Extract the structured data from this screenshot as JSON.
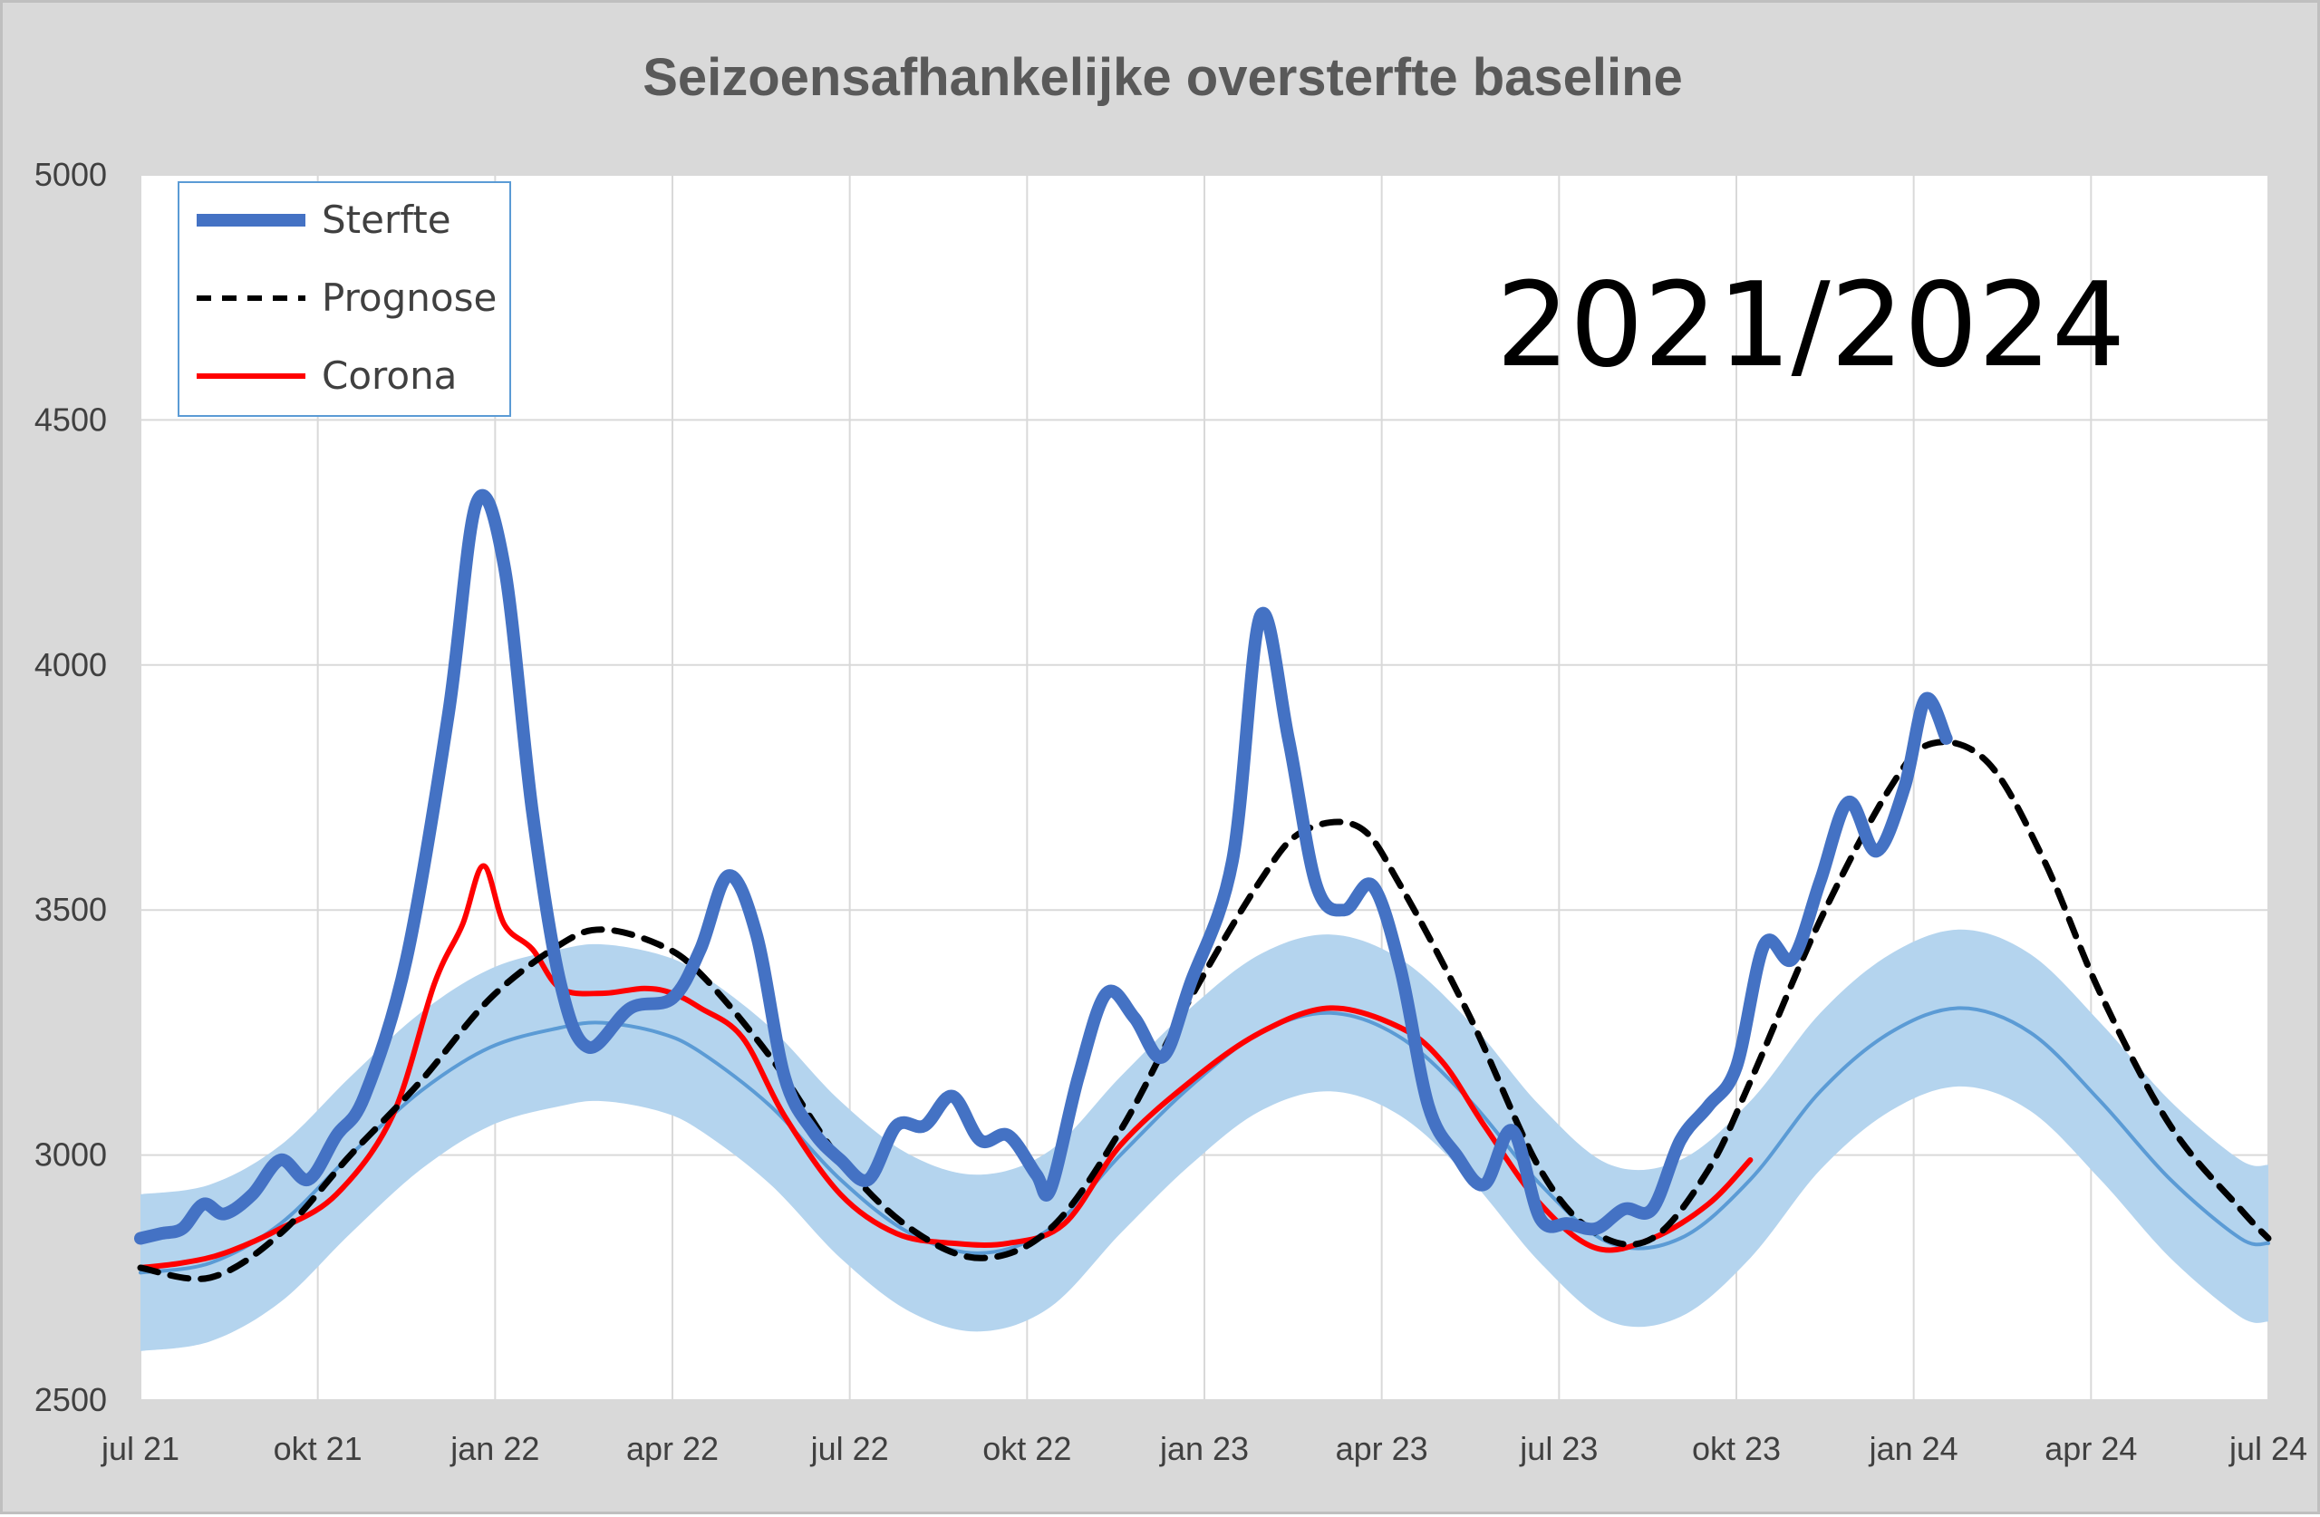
{
  "chart_data": {
    "type": "line",
    "title": "Seizoensafhankelijke oversterfte baseline",
    "annotation": "2021/2024",
    "x_ticks": [
      "jul 21",
      "okt 21",
      "jan 22",
      "apr 22",
      "jul 22",
      "okt 22",
      "jan 23",
      "apr 23",
      "jul 23",
      "okt 23",
      "jan 24",
      "apr 24",
      "jul 24"
    ],
    "ylim": [
      2500,
      5000
    ],
    "y_ticks": [
      "2500",
      "3000",
      "3500",
      "4000",
      "4500",
      "5000"
    ],
    "grid": true,
    "legend_position": "top-left",
    "colors": {
      "sterfte": "#4472c4",
      "prognose": "#000000",
      "corona": "#ff0000",
      "baseline": "#5b9bd5",
      "band": "#b4d4ee"
    },
    "series": [
      {
        "name": "Sterfte",
        "style": "solid-thick",
        "points": [
          [
            0.0,
            2830
          ],
          [
            0.15,
            2840
          ],
          [
            0.3,
            2850
          ],
          [
            0.45,
            2900
          ],
          [
            0.6,
            2880
          ],
          [
            0.8,
            2920
          ],
          [
            1.0,
            2990
          ],
          [
            1.2,
            2950
          ],
          [
            1.4,
            3040
          ],
          [
            1.6,
            3120
          ],
          [
            1.9,
            3400
          ],
          [
            2.2,
            3900
          ],
          [
            2.4,
            4330
          ],
          [
            2.6,
            4200
          ],
          [
            2.8,
            3700
          ],
          [
            3.0,
            3350
          ],
          [
            3.2,
            3220
          ],
          [
            3.5,
            3300
          ],
          [
            3.8,
            3320
          ],
          [
            4.0,
            3420
          ],
          [
            4.2,
            3570
          ],
          [
            4.4,
            3450
          ],
          [
            4.6,
            3160
          ],
          [
            4.8,
            3050
          ],
          [
            5.0,
            2990
          ],
          [
            5.2,
            2950
          ],
          [
            5.4,
            3060
          ],
          [
            5.6,
            3060
          ],
          [
            5.8,
            3120
          ],
          [
            6.0,
            3030
          ],
          [
            6.2,
            3040
          ],
          [
            6.4,
            2960
          ],
          [
            6.5,
            2930
          ],
          [
            6.7,
            3160
          ],
          [
            6.9,
            3330
          ],
          [
            7.1,
            3280
          ],
          [
            7.3,
            3200
          ],
          [
            7.5,
            3350
          ],
          [
            7.8,
            3600
          ],
          [
            8.0,
            4100
          ],
          [
            8.2,
            3850
          ],
          [
            8.4,
            3550
          ],
          [
            8.6,
            3500
          ],
          [
            8.8,
            3550
          ],
          [
            9.0,
            3380
          ],
          [
            9.2,
            3100
          ],
          [
            9.4,
            3000
          ],
          [
            9.6,
            2940
          ],
          [
            9.8,
            3050
          ],
          [
            10.0,
            2870
          ],
          [
            10.2,
            2860
          ],
          [
            10.4,
            2850
          ],
          [
            10.6,
            2890
          ],
          [
            10.8,
            2890
          ],
          [
            11.0,
            3030
          ],
          [
            11.2,
            3100
          ],
          [
            11.4,
            3180
          ],
          [
            11.6,
            3430
          ],
          [
            11.8,
            3400
          ],
          [
            12.0,
            3560
          ],
          [
            12.2,
            3720
          ],
          [
            12.4,
            3620
          ],
          [
            12.6,
            3750
          ],
          [
            12.75,
            3930
          ],
          [
            12.9,
            3850
          ]
        ]
      },
      {
        "name": "Prognose",
        "style": "dashed",
        "points": [
          [
            0.0,
            2770
          ],
          [
            0.5,
            2750
          ],
          [
            1.0,
            2840
          ],
          [
            1.5,
            3000
          ],
          [
            2.0,
            3150
          ],
          [
            2.5,
            3320
          ],
          [
            3.0,
            3430
          ],
          [
            3.3,
            3460
          ],
          [
            3.7,
            3430
          ],
          [
            4.0,
            3370
          ],
          [
            4.5,
            3200
          ],
          [
            5.0,
            2990
          ],
          [
            5.5,
            2850
          ],
          [
            6.0,
            2790
          ],
          [
            6.5,
            2850
          ],
          [
            7.0,
            3050
          ],
          [
            7.5,
            3320
          ],
          [
            8.0,
            3560
          ],
          [
            8.3,
            3660
          ],
          [
            8.7,
            3670
          ],
          [
            9.0,
            3550
          ],
          [
            9.5,
            3280
          ],
          [
            10.0,
            2970
          ],
          [
            10.4,
            2840
          ],
          [
            10.8,
            2830
          ],
          [
            11.2,
            2970
          ],
          [
            11.5,
            3150
          ],
          [
            12.0,
            3480
          ],
          [
            12.5,
            3750
          ],
          [
            12.8,
            3840
          ],
          [
            13.2,
            3800
          ],
          [
            13.6,
            3600
          ],
          [
            14.0,
            3330
          ],
          [
            14.5,
            3060
          ],
          [
            15.0,
            2890
          ],
          [
            15.2,
            2830
          ]
        ]
      },
      {
        "name": "Corona",
        "style": "solid",
        "points": [
          [
            0.0,
            2770
          ],
          [
            0.3,
            2780
          ],
          [
            0.6,
            2800
          ],
          [
            1.0,
            2850
          ],
          [
            1.4,
            2920
          ],
          [
            1.8,
            3080
          ],
          [
            2.1,
            3350
          ],
          [
            2.3,
            3470
          ],
          [
            2.45,
            3590
          ],
          [
            2.6,
            3470
          ],
          [
            2.8,
            3420
          ],
          [
            3.0,
            3340
          ],
          [
            3.3,
            3330
          ],
          [
            3.6,
            3340
          ],
          [
            3.8,
            3330
          ],
          [
            4.0,
            3300
          ],
          [
            4.3,
            3240
          ],
          [
            4.6,
            3080
          ],
          [
            5.0,
            2920
          ],
          [
            5.4,
            2840
          ],
          [
            5.8,
            2820
          ],
          [
            6.2,
            2820
          ],
          [
            6.6,
            2860
          ],
          [
            7.0,
            3020
          ],
          [
            7.5,
            3150
          ],
          [
            8.0,
            3250
          ],
          [
            8.5,
            3300
          ],
          [
            9.0,
            3260
          ],
          [
            9.3,
            3190
          ],
          [
            9.6,
            3060
          ],
          [
            10.0,
            2900
          ],
          [
            10.4,
            2810
          ],
          [
            10.8,
            2830
          ],
          [
            11.2,
            2900
          ],
          [
            11.5,
            2990
          ]
        ]
      },
      {
        "name": "",
        "style": "baseline",
        "points": [
          [
            0.0,
            2760
          ],
          [
            0.5,
            2780
          ],
          [
            1.0,
            2860
          ],
          [
            1.5,
            3000
          ],
          [
            2.0,
            3130
          ],
          [
            2.5,
            3220
          ],
          [
            3.0,
            3260
          ],
          [
            3.3,
            3270
          ],
          [
            3.7,
            3250
          ],
          [
            4.0,
            3210
          ],
          [
            4.5,
            3100
          ],
          [
            5.0,
            2950
          ],
          [
            5.5,
            2840
          ],
          [
            6.0,
            2800
          ],
          [
            6.5,
            2850
          ],
          [
            7.0,
            3000
          ],
          [
            7.5,
            3140
          ],
          [
            8.0,
            3250
          ],
          [
            8.5,
            3290
          ],
          [
            9.0,
            3240
          ],
          [
            9.5,
            3110
          ],
          [
            10.0,
            2940
          ],
          [
            10.5,
            2820
          ],
          [
            11.0,
            2830
          ],
          [
            11.5,
            2950
          ],
          [
            12.0,
            3130
          ],
          [
            12.5,
            3250
          ],
          [
            13.0,
            3300
          ],
          [
            13.5,
            3250
          ],
          [
            14.0,
            3110
          ],
          [
            14.5,
            2950
          ],
          [
            15.0,
            2830
          ],
          [
            15.2,
            2820
          ]
        ]
      }
    ],
    "band_half_width": 160
  }
}
